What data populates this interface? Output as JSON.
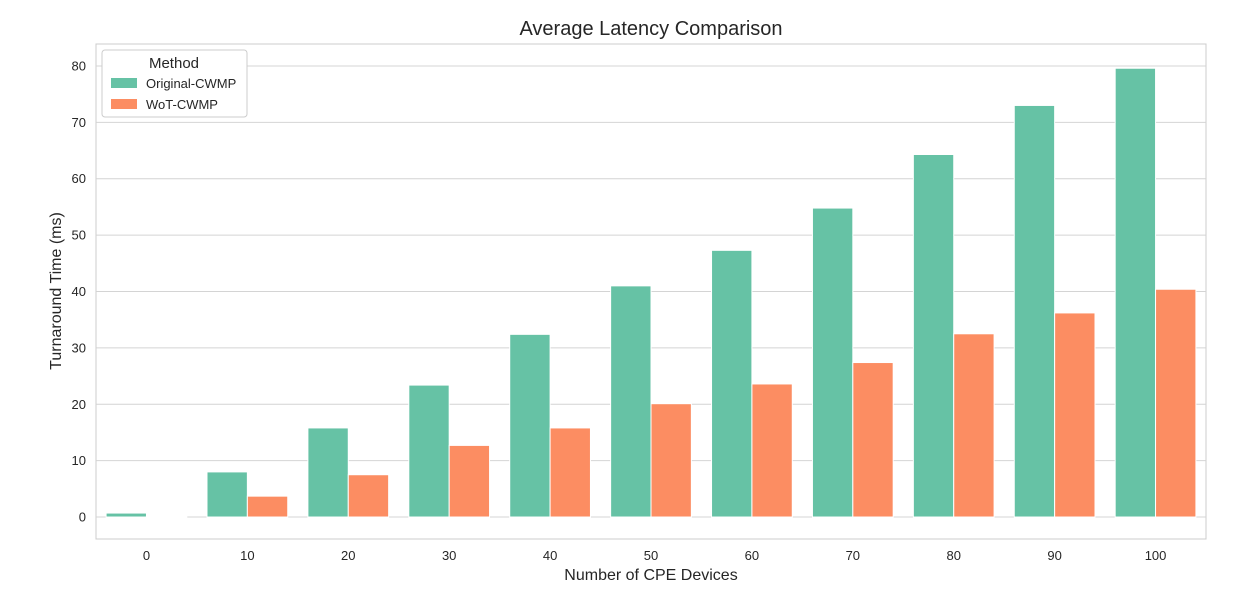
{
  "chart_data": {
    "type": "bar",
    "title": "Average Latency Comparison",
    "xlabel": "Number of CPE Devices",
    "ylabel": "Turnaround Time (ms)",
    "categories": [
      "0",
      "10",
      "20",
      "30",
      "40",
      "50",
      "60",
      "70",
      "80",
      "90",
      "100"
    ],
    "series": [
      {
        "name": "Original-CWMP",
        "color": "#66c2a5",
        "values": [
          0.7,
          8.0,
          15.8,
          23.4,
          32.4,
          41.0,
          47.3,
          54.8,
          64.3,
          73.0,
          79.6
        ]
      },
      {
        "name": "WoT-CWMP",
        "color": "#fc8d62",
        "values": [
          0.05,
          3.7,
          7.5,
          12.7,
          15.8,
          20.1,
          23.6,
          27.4,
          32.5,
          36.2,
          40.4
        ]
      }
    ],
    "ylim": [
      -3.9,
      83.9
    ],
    "yticks": [
      0,
      10,
      20,
      30,
      40,
      50,
      60,
      70,
      80
    ],
    "grid": true,
    "legend": {
      "title": "Method",
      "position": "top-left"
    }
  }
}
